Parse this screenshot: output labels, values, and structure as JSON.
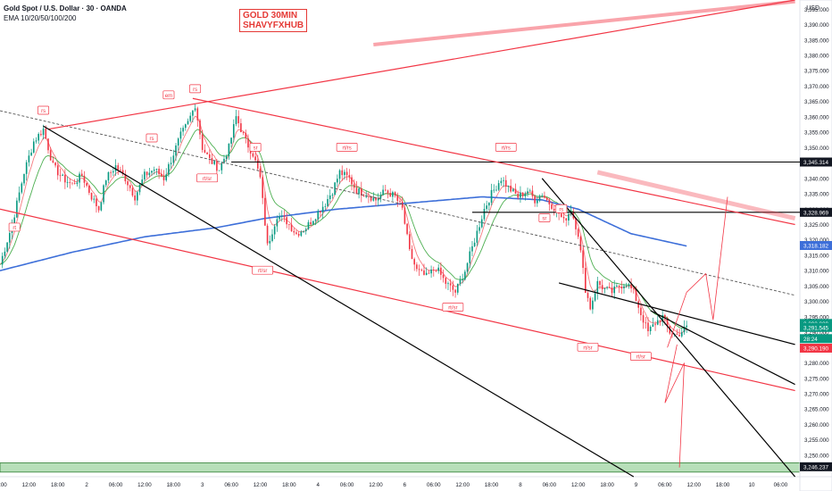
{
  "header": {
    "symbol": "Gold Spot / U.S. Dollar · 30 · OANDA",
    "indicator": "EMA 10/20/50/100/200"
  },
  "watermark": {
    "line1": "GOLD 30MIN",
    "line2": "SHAVYFXHUB"
  },
  "currency": "USD",
  "colors": {
    "up": "#089981",
    "down": "#f23645",
    "ema_fast": "#f77c80",
    "ema_mid": "#4caf50",
    "ema_slow": "#3d6fd9",
    "trend_red": "#f23645",
    "trend_black": "#000000",
    "support_zone": "#7cc47f"
  },
  "chart_data": {
    "type": "candlestick",
    "title": "",
    "ylim": [
      3243,
      3398
    ],
    "y_ticks": [
      3250,
      3255,
      3260,
      3265,
      3270,
      3275,
      3280,
      3285,
      3290,
      3295,
      3300,
      3305,
      3310,
      3315,
      3320,
      3325,
      3330,
      3335,
      3340,
      3345,
      3350,
      3355,
      3360,
      3365,
      3370,
      3375,
      3380,
      3385,
      3390,
      3395
    ],
    "y_tick_labels": [
      "3,250.000",
      "3,255.000",
      "3,260.000",
      "3,265.000",
      "3,270.000",
      "3,275.000",
      "3,280.000",
      "3,285.000",
      "3,290.000",
      "3,295.000",
      "3,300.000",
      "3,305.000",
      "3,310.000",
      "3,315.000",
      "3,320.000",
      "3,325.000",
      "3,330.000",
      "3,335.000",
      "3,340.000",
      "3,345.000",
      "3,350.000",
      "3,355.000",
      "3,360.000",
      "3,365.000",
      "3,370.000",
      "3,375.000",
      "3,380.000",
      "3,385.000",
      "3,390.000",
      "3,395.000"
    ],
    "x_ticks": [
      {
        "i": 0,
        "label": "06:00"
      },
      {
        "i": 12,
        "label": "12:00"
      },
      {
        "i": 24,
        "label": "18:00"
      },
      {
        "i": 36,
        "label": "2"
      },
      {
        "i": 48,
        "label": "06:00"
      },
      {
        "i": 60,
        "label": "12:00"
      },
      {
        "i": 72,
        "label": "18:00"
      },
      {
        "i": 84,
        "label": "3"
      },
      {
        "i": 96,
        "label": "06:00"
      },
      {
        "i": 108,
        "label": "12:00"
      },
      {
        "i": 120,
        "label": "18:00"
      },
      {
        "i": 132,
        "label": "4"
      },
      {
        "i": 144,
        "label": "06:00"
      },
      {
        "i": 156,
        "label": "12:00"
      },
      {
        "i": 168,
        "label": "6"
      },
      {
        "i": 180,
        "label": "06:00"
      },
      {
        "i": 192,
        "label": "12:00"
      },
      {
        "i": 204,
        "label": "18:00"
      },
      {
        "i": 216,
        "label": "8"
      },
      {
        "i": 228,
        "label": "06:00"
      },
      {
        "i": 240,
        "label": "12:00"
      },
      {
        "i": 252,
        "label": "18:00"
      },
      {
        "i": 264,
        "label": "9"
      },
      {
        "i": 276,
        "label": "06:00"
      },
      {
        "i": 288,
        "label": "12:00"
      },
      {
        "i": 300,
        "label": "18:00"
      },
      {
        "i": 312,
        "label": "10"
      },
      {
        "i": 324,
        "label": "06:00"
      }
    ],
    "price_series": {
      "bars": 285,
      "anchors": [
        [
          0,
          3312
        ],
        [
          5,
          3325
        ],
        [
          10,
          3342
        ],
        [
          14,
          3352
        ],
        [
          18,
          3356
        ],
        [
          22,
          3344
        ],
        [
          26,
          3340
        ],
        [
          30,
          3338
        ],
        [
          34,
          3341
        ],
        [
          38,
          3334
        ],
        [
          41,
          3330
        ],
        [
          44,
          3340
        ],
        [
          48,
          3344
        ],
        [
          52,
          3340
        ],
        [
          56,
          3334
        ],
        [
          60,
          3341
        ],
        [
          64,
          3343
        ],
        [
          68,
          3340
        ],
        [
          72,
          3348
        ],
        [
          75,
          3354
        ],
        [
          78,
          3358
        ],
        [
          81,
          3364
        ],
        [
          84,
          3350
        ],
        [
          87,
          3346
        ],
        [
          91,
          3343
        ],
        [
          95,
          3350
        ],
        [
          98,
          3360
        ],
        [
          102,
          3352
        ],
        [
          105,
          3348
        ],
        [
          108,
          3340
        ],
        [
          111,
          3318
        ],
        [
          115,
          3328
        ],
        [
          119,
          3326
        ],
        [
          123,
          3322
        ],
        [
          127,
          3324
        ],
        [
          131,
          3328
        ],
        [
          135,
          3332
        ],
        [
          138,
          3336
        ],
        [
          141,
          3342
        ],
        [
          145,
          3340
        ],
        [
          148,
          3336
        ],
        [
          152,
          3335
        ],
        [
          156,
          3333
        ],
        [
          160,
          3336
        ],
        [
          164,
          3334
        ],
        [
          167,
          3330
        ],
        [
          170,
          3316
        ],
        [
          173,
          3310
        ],
        [
          177,
          3308
        ],
        [
          181,
          3311
        ],
        [
          185,
          3306
        ],
        [
          189,
          3303
        ],
        [
          193,
          3310
        ],
        [
          197,
          3320
        ],
        [
          201,
          3330
        ],
        [
          204,
          3335
        ],
        [
          208,
          3340
        ],
        [
          211,
          3337
        ],
        [
          215,
          3334
        ],
        [
          219,
          3336
        ],
        [
          222,
          3333
        ],
        [
          225,
          3335
        ],
        [
          228,
          3332
        ],
        [
          231,
          3330
        ],
        [
          234,
          3326
        ],
        [
          237,
          3330
        ],
        [
          240,
          3322
        ],
        [
          243,
          3304
        ],
        [
          245,
          3298
        ],
        [
          248,
          3306
        ],
        [
          251,
          3304
        ],
        [
          254,
          3303
        ],
        [
          257,
          3305
        ],
        [
          260,
          3306
        ],
        [
          263,
          3303
        ],
        [
          266,
          3296
        ],
        [
          269,
          3290
        ],
        [
          272,
          3293
        ],
        [
          275,
          3295
        ],
        [
          278,
          3290
        ],
        [
          281,
          3289
        ],
        [
          285,
          3291.5
        ]
      ]
    },
    "ema_series": [
      {
        "lag": 2,
        "color": "#f77c80"
      },
      {
        "lag": 4,
        "color": "#4caf50"
      },
      {
        "anchors": [
          [
            0,
            3310
          ],
          [
            30,
            3316
          ],
          [
            60,
            3321
          ],
          [
            90,
            3324
          ],
          [
            110,
            3327
          ],
          [
            140,
            3330
          ],
          [
            170,
            3332
          ],
          [
            200,
            3334
          ],
          [
            225,
            3333
          ],
          [
            240,
            3330
          ],
          [
            262,
            3322
          ],
          [
            285,
            3318
          ]
        ],
        "color": "#3d6fd9",
        "last_label": "3,318.182"
      }
    ],
    "price_labels": [
      {
        "y": 3345.314,
        "label": "3,345.314",
        "bg": "#131722"
      },
      {
        "y": 3328.969,
        "label": "3,328.969",
        "bg": "#131722"
      },
      {
        "y": 3318.182,
        "label": "3,318.182",
        "bg": "#3d6fd9"
      },
      {
        "y": 3292.829,
        "label": "3,292.829",
        "bg": "#089981"
      },
      {
        "y": 3291.545,
        "label": "3,291.545",
        "bg": "#089981"
      },
      {
        "y": 3287.9,
        "label": "28:24",
        "bg": "#089981"
      },
      {
        "y": 3284.8,
        "label": "3,290.190",
        "bg": "#f23645"
      },
      {
        "y": 3246.237,
        "label": "3,246.237",
        "bg": "#131722"
      }
    ],
    "horizontal_levels": [
      {
        "y": 3345.314,
        "from_i": 96
      },
      {
        "y": 3328.969,
        "from_i": 196
      }
    ],
    "support_zone": [
      3244.5,
      3247.5
    ],
    "lines": [
      {
        "p1": [
          0,
          3362
        ],
        "p2": [
          330,
          3302
        ],
        "color": "#555555",
        "dash": true,
        "name": "dashed-gray"
      },
      {
        "p1": [
          20,
          3356
        ],
        "p2": [
          330,
          3398
        ],
        "color": "#f23645",
        "name": "upper-rising"
      },
      {
        "p1": [
          80,
          3366
        ],
        "p2": [
          330,
          3325
        ],
        "color": "#f23645",
        "name": "upper-falling"
      },
      {
        "p1": [
          0,
          3330
        ],
        "p2": [
          330,
          3271
        ],
        "color": "#f23645",
        "name": "lower-channel"
      },
      {
        "p1": [
          18,
          3357
        ],
        "p2": [
          263,
          3243
        ],
        "color": "#000000",
        "name": "long-black"
      },
      {
        "p1": [
          225,
          3340
        ],
        "p2": [
          330,
          3243
        ],
        "color": "#000000",
        "name": "steep-black"
      },
      {
        "p1": [
          232,
          3306
        ],
        "p2": [
          330,
          3286
        ],
        "color": "#000000",
        "name": "wedge-upper"
      },
      {
        "p1": [
          270,
          3297
        ],
        "p2": [
          330,
          3273
        ],
        "color": "#000000",
        "name": "wedge-lower"
      }
    ],
    "annotations": [
      {
        "i": 18,
        "y": 3362,
        "label": "rs"
      },
      {
        "i": 70,
        "y": 3367,
        "label": "em"
      },
      {
        "i": 81,
        "y": 3369,
        "label": "rs"
      },
      {
        "i": 63,
        "y": 3353,
        "label": "rs"
      },
      {
        "i": 86,
        "y": 3340,
        "label": "rt/sr"
      },
      {
        "i": 106,
        "y": 3350,
        "label": "sr"
      },
      {
        "i": 109,
        "y": 3310,
        "label": "rt/sr"
      },
      {
        "i": 144,
        "y": 3350,
        "label": "rt/rs"
      },
      {
        "i": 188,
        "y": 3298,
        "label": "rt/sr"
      },
      {
        "i": 210,
        "y": 3350,
        "label": "rt/rs"
      },
      {
        "i": 226,
        "y": 3327,
        "label": "sr"
      },
      {
        "i": 233,
        "y": 3330,
        "label": "rs"
      },
      {
        "i": 244,
        "y": 3285,
        "label": "rt/sr"
      },
      {
        "i": 266,
        "y": 3282,
        "label": "rt/sr"
      },
      {
        "i": 6,
        "y": 3324,
        "label": "rt"
      }
    ],
    "projections": [
      [
        [
          277,
          3285
        ],
        [
          285,
          3303
        ],
        [
          293,
          3309
        ],
        [
          296,
          3294
        ],
        [
          302,
          3334
        ]
      ],
      [
        [
          281,
          3286
        ],
        [
          276,
          3267
        ],
        [
          284,
          3280
        ],
        [
          282,
          3246
        ]
      ]
    ]
  }
}
